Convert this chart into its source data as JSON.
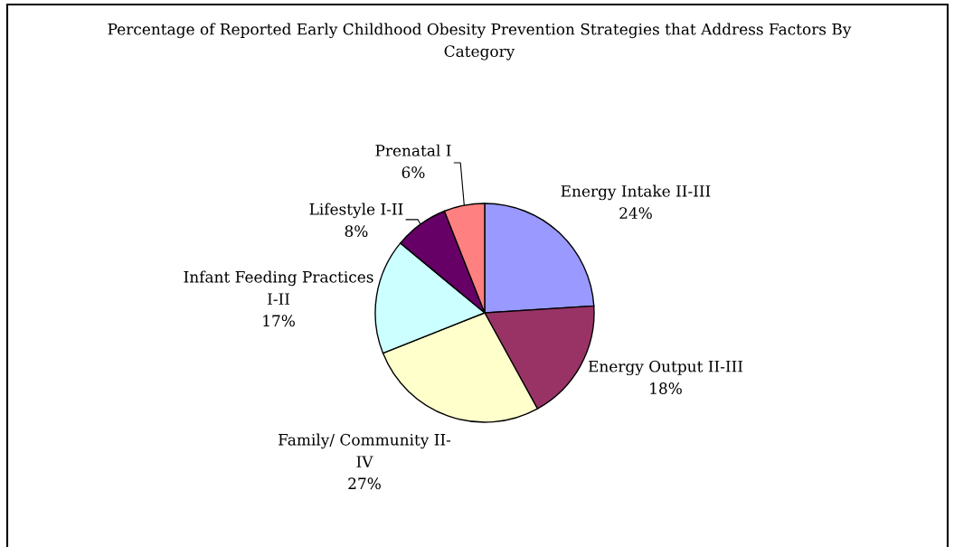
{
  "chart_data": {
    "type": "pie",
    "title": "Percentage of Reported Early Childhood Obesity Prevention Strategies that Address Factors By\nCategory",
    "categories": [
      "Energy Intake II-III",
      "Energy Output II-III",
      "Family/ Community II-\nIV",
      "Infant Feeding Practices\nI-II",
      "Lifestyle I-II",
      "Prenatal I"
    ],
    "values": [
      24,
      18,
      27,
      17,
      8,
      6
    ],
    "value_labels": [
      "24%",
      "18%",
      "27%",
      "17%",
      "8%",
      "6%"
    ],
    "colors": [
      "#9999ff",
      "#993366",
      "#ffffcc",
      "#ccffff",
      "#660066",
      "#ff8080"
    ]
  }
}
